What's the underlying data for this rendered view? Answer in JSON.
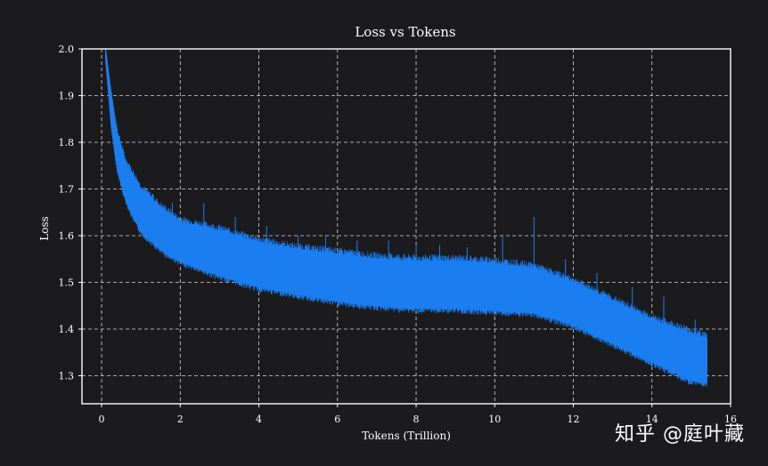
{
  "chart_data": {
    "type": "line",
    "title": "Loss vs Tokens",
    "xlabel": "Tokens (Trillion)",
    "ylabel": "Loss",
    "xlim": [
      -0.5,
      16
    ],
    "ylim": [
      1.24,
      2.0
    ],
    "xticks": [
      0,
      2,
      4,
      6,
      8,
      10,
      12,
      14,
      16
    ],
    "yticks": [
      1.3,
      1.4,
      1.5,
      1.6,
      1.7,
      1.8,
      1.9,
      2.0
    ],
    "grid": true,
    "legend": "none",
    "series": [
      {
        "color": "#1a7ef0",
        "upper": [
          [
            0.1,
            2.0
          ],
          [
            0.25,
            1.9
          ],
          [
            0.4,
            1.82
          ],
          [
            0.6,
            1.76
          ],
          [
            0.8,
            1.73
          ],
          [
            1.0,
            1.7
          ],
          [
            1.5,
            1.66
          ],
          [
            2.0,
            1.63
          ],
          [
            3.0,
            1.61
          ],
          [
            4.0,
            1.585
          ],
          [
            5.0,
            1.57
          ],
          [
            6.0,
            1.56
          ],
          [
            7.0,
            1.55
          ],
          [
            8.0,
            1.545
          ],
          [
            9.0,
            1.545
          ],
          [
            10.0,
            1.54
          ],
          [
            11.0,
            1.53
          ],
          [
            12.0,
            1.5
          ],
          [
            13.0,
            1.46
          ],
          [
            14.0,
            1.42
          ],
          [
            15.0,
            1.39
          ],
          [
            15.4,
            1.38
          ]
        ],
        "lower": [
          [
            0.1,
            1.98
          ],
          [
            0.25,
            1.83
          ],
          [
            0.4,
            1.74
          ],
          [
            0.6,
            1.68
          ],
          [
            0.8,
            1.64
          ],
          [
            1.0,
            1.61
          ],
          [
            1.5,
            1.57
          ],
          [
            2.0,
            1.545
          ],
          [
            3.0,
            1.515
          ],
          [
            4.0,
            1.49
          ],
          [
            5.0,
            1.475
          ],
          [
            6.0,
            1.46
          ],
          [
            7.0,
            1.45
          ],
          [
            8.0,
            1.445
          ],
          [
            9.0,
            1.445
          ],
          [
            10.0,
            1.44
          ],
          [
            11.0,
            1.435
          ],
          [
            12.0,
            1.41
          ],
          [
            13.0,
            1.37
          ],
          [
            14.0,
            1.33
          ],
          [
            15.0,
            1.29
          ],
          [
            15.4,
            1.285
          ]
        ],
        "spikes": [
          [
            0.7,
            1.75
          ],
          [
            1.3,
            1.69
          ],
          [
            1.8,
            1.67
          ],
          [
            2.6,
            1.67
          ],
          [
            3.4,
            1.64
          ],
          [
            4.2,
            1.62
          ],
          [
            5.0,
            1.6
          ],
          [
            5.7,
            1.6
          ],
          [
            6.5,
            1.59
          ],
          [
            7.3,
            1.59
          ],
          [
            8.0,
            1.58
          ],
          [
            8.6,
            1.58
          ],
          [
            9.3,
            1.575
          ],
          [
            10.2,
            1.6
          ],
          [
            11.0,
            1.64
          ],
          [
            11.8,
            1.55
          ],
          [
            12.6,
            1.52
          ],
          [
            13.5,
            1.49
          ],
          [
            14.3,
            1.47
          ],
          [
            15.1,
            1.42
          ]
        ]
      }
    ]
  },
  "watermark": "知乎 @庭叶藏"
}
